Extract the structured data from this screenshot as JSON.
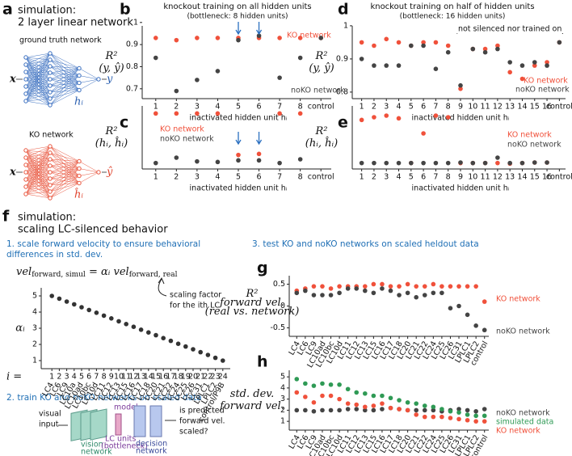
{
  "panels": {
    "a": "a",
    "b": "b",
    "c": "c",
    "d": "d",
    "e": "e",
    "f": "f",
    "g": "g",
    "h": "h"
  },
  "diagram": {
    "a_title": [
      "simulation:",
      "2 layer linear network"
    ],
    "ground_truth": "ground truth network",
    "ko_network": "KO network",
    "x": "x",
    "y": "y",
    "h": "hᵢ",
    "yhat": "ŷ",
    "hhat": "ĥᵢ",
    "f_title": [
      "simulation:",
      "scaling LC-silenced behavior"
    ],
    "step1": [
      "1. scale forward velocity to ensure behavioral",
      "differences in std. dev."
    ],
    "formula": [
      "vel",
      "forward, simul",
      " = αᵢ vel",
      "forward, real"
    ],
    "scaling_note": [
      "scaling factor",
      "for the ith LC"
    ],
    "step2": "2. train KO and noKO networks on scaled data",
    "step3": "3. test KO and noKO networks on scaled heldout data",
    "visual_input": [
      "visual",
      "input"
    ],
    "vision_network": [
      "vision",
      "network"
    ],
    "model_units": [
      "model",
      "LC units",
      "(bottleneck)"
    ],
    "decision_network": [
      "decision",
      "network"
    ],
    "question": [
      "is predicted",
      "forward vel.",
      "scaled?"
    ]
  },
  "chart_data": [
    {
      "type": "scatter",
      "title": "knockout training on all hidden units",
      "subtitle": "(bottleneck: 8 hidden units)",
      "ylabel": [
        "R²",
        "(y, ŷ)"
      ],
      "xlabel": "inactivated hidden unit hᵢ",
      "categories": [
        "1",
        "2",
        "3",
        "4",
        "5",
        "6",
        "7",
        "8",
        "control"
      ],
      "series": [
        {
          "name": "KO network",
          "color": "#f0513b",
          "values": [
            0.93,
            0.92,
            0.93,
            0.93,
            0.93,
            0.93,
            0.93,
            0.93,
            0.93
          ]
        },
        {
          "name": "noKO network",
          "color": "#444444",
          "values": [
            0.84,
            0.69,
            0.74,
            0.78,
            0.92,
            0.94,
            0.75,
            0.84,
            0.93
          ]
        }
      ],
      "ylim": [
        0.67,
        0.97
      ],
      "yticks": [
        0.7,
        0.8,
        0.9,
        1
      ]
    },
    {
      "type": "scatter",
      "ylabel": [
        "R²",
        "(hᵢ, ĥᵢ)"
      ],
      "xlabel": "inactivated hidden unit hᵢ",
      "categories": [
        "1",
        "2",
        "3",
        "4",
        "5",
        "6",
        "7",
        "8",
        "control"
      ],
      "series": [
        {
          "name": "KO network",
          "color": "#f0513b",
          "values": [
            0.97,
            0.97,
            0.97,
            0.97,
            0.2,
            0.22,
            0.97,
            0.97,
            null
          ]
        },
        {
          "name": "noKO network",
          "color": "#444444",
          "values": [
            0.05,
            0.15,
            0.08,
            0.07,
            0.1,
            0.1,
            0.05,
            0.12,
            null
          ]
        }
      ],
      "ylim": [
        0,
        1.05
      ]
    },
    {
      "type": "scatter",
      "title": "knockout training on half of hidden units",
      "subtitle": "(bottleneck: 16 hidden units)",
      "annotation": "not silenced nor trained on",
      "ylabel": [
        "R²",
        "(y, ŷ)"
      ],
      "xlabel": "inactivated hidden unit hᵢ",
      "categories": [
        "1",
        "2",
        "3",
        "4",
        "5",
        "6",
        "7",
        "8",
        "9",
        "10",
        "11",
        "12",
        "13",
        "14",
        "15",
        "16",
        "control"
      ],
      "series": [
        {
          "name": "KO network",
          "color": "#f0513b",
          "values": [
            0.95,
            0.94,
            0.96,
            0.95,
            0.94,
            0.95,
            0.95,
            0.94,
            0.81,
            0.93,
            0.93,
            0.94,
            0.86,
            0.84,
            0.88,
            0.89,
            0.95
          ]
        },
        {
          "name": "noKO network",
          "color": "#444444",
          "values": [
            0.9,
            0.88,
            0.88,
            0.88,
            0.94,
            0.94,
            0.87,
            0.92,
            0.82,
            0.93,
            0.92,
            0.93,
            0.89,
            0.88,
            0.89,
            0.88,
            0.95
          ]
        }
      ],
      "ylim": [
        0.79,
        0.99
      ],
      "yticks": [
        0.8,
        0.9,
        1
      ]
    },
    {
      "type": "scatter",
      "ylabel": [
        "R²",
        "(hᵢ, ĥᵢ)"
      ],
      "xlabel": "inactivated hidden unit hᵢ",
      "categories": [
        "1",
        "2",
        "3",
        "4",
        "5",
        "6",
        "7",
        "8",
        "9",
        "10",
        "11",
        "12",
        "13",
        "14",
        "15",
        "16",
        "control"
      ],
      "series": [
        {
          "name": "KO network",
          "color": "#f0513b",
          "values": [
            0.85,
            0.9,
            0.93,
            0.88,
            0.05,
            0.6,
            0.93,
            0.9,
            0.05,
            0.05,
            0.05,
            0.05,
            0.04,
            0.05,
            0.06,
            0.06,
            null
          ]
        },
        {
          "name": "noKO network",
          "color": "#444444",
          "values": [
            0.05,
            0.05,
            0.05,
            0.05,
            0.05,
            0.05,
            0.05,
            0.05,
            0.06,
            0.05,
            0.05,
            0.15,
            0.05,
            0.05,
            0.06,
            0.06,
            null
          ]
        }
      ],
      "ylim": [
        0,
        1.05
      ]
    },
    {
      "type": "scatter",
      "ylabel": [
        "αᵢ"
      ],
      "xlabel_prefix": "i =",
      "x": [
        1,
        2,
        3,
        4,
        5,
        6,
        7,
        8,
        9,
        10,
        11,
        12,
        13,
        14,
        15,
        16,
        17,
        18,
        19,
        20,
        21,
        22,
        23,
        24
      ],
      "categories": [
        "LC4",
        "LC6",
        "LC9",
        "LC10a",
        "LC10ad",
        "LC10bc",
        "LC10d",
        "LC11",
        "LC12",
        "LC13",
        "LC15",
        "LC16",
        "LC17",
        "LC18",
        "LC20",
        "LC21",
        "LC22",
        "LC24",
        "LC25",
        "LC26",
        "LC31",
        "LPLC1",
        "LPLC2",
        "control/P9B"
      ],
      "series": [
        {
          "name": "αᵢ",
          "color": "#333333",
          "values": [
            5,
            4.83,
            4.65,
            4.48,
            4.3,
            4.13,
            3.96,
            3.78,
            3.61,
            3.43,
            3.26,
            3.09,
            2.91,
            2.74,
            2.57,
            2.39,
            2.22,
            2.04,
            1.87,
            1.7,
            1.52,
            1.35,
            1.17,
            1
          ]
        }
      ],
      "xlim": [
        0,
        25
      ],
      "xticks": [
        1,
        2,
        3,
        4,
        5,
        6,
        7,
        8,
        9,
        10,
        11,
        12,
        13,
        14,
        15,
        16,
        17,
        18,
        19,
        20,
        21,
        22,
        23,
        24
      ],
      "ylim": [
        0.7,
        5.3
      ],
      "yticks": [
        1,
        2,
        3,
        4,
        5
      ]
    },
    {
      "type": "scatter",
      "ylabel": [
        "R²",
        "forward vel.",
        "(real vs. network)"
      ],
      "categories": [
        "LC4",
        "LC6",
        "LC9",
        "LC10ad",
        "LC10bc",
        "LC10d",
        "LC11",
        "LC12",
        "LC13",
        "LC15",
        "LC16",
        "LC17",
        "LC18",
        "LC20",
        "LC21",
        "LC22",
        "LC24",
        "LC25",
        "LC26",
        "LC31",
        "LPLC1",
        "LPLC2",
        "control"
      ],
      "series": [
        {
          "name": "KO network",
          "color": "#f0513b",
          "values": [
            0.35,
            0.4,
            0.45,
            0.45,
            0.4,
            0.45,
            0.45,
            0.45,
            0.45,
            0.5,
            0.5,
            0.45,
            0.45,
            0.5,
            0.45,
            0.45,
            0.5,
            0.45,
            0.45,
            0.45,
            0.45,
            0.45,
            0.1
          ]
        },
        {
          "name": "noKO network",
          "color": "#444444",
          "values": [
            0.3,
            0.35,
            0.25,
            0.25,
            0.25,
            0.3,
            0.4,
            0.4,
            0.35,
            0.3,
            0.4,
            0.35,
            0.25,
            0.3,
            0.2,
            0.25,
            0.3,
            0.3,
            -0.05,
            0,
            -0.2,
            -0.45,
            -0.55
          ]
        }
      ],
      "ylim": [
        -0.62,
        0.62
      ],
      "yticks": [
        0.5,
        0,
        -0.5
      ]
    },
    {
      "type": "scatter",
      "ylabel": [
        "std. dev.",
        "forward vel."
      ],
      "categories": [
        "LC4",
        "LC6",
        "LC9",
        "LC10ad",
        "LC10bc",
        "LC10d",
        "LC11",
        "LC12",
        "LC13",
        "LC15",
        "LC16",
        "LC17",
        "LC18",
        "LC20",
        "LC21",
        "LC22",
        "LC24",
        "LC25",
        "LC26",
        "LC31",
        "LPLC1",
        "LPLC2",
        "control"
      ],
      "series": [
        {
          "name": "noKO network",
          "color": "#444444",
          "values": [
            2,
            2,
            1.9,
            2,
            2,
            2,
            2.1,
            2.1,
            2,
            2,
            2.1,
            2.2,
            2.1,
            2,
            2,
            2,
            2,
            1.9,
            2,
            2.1,
            2,
            1.9,
            2.1
          ]
        },
        {
          "name": "simulated data",
          "color": "#2f9a55",
          "values": [
            4.8,
            4.4,
            4.2,
            4.4,
            4.3,
            4.3,
            3.9,
            3.6,
            3.5,
            3.3,
            3.3,
            3.1,
            2.9,
            2.7,
            2.6,
            2.4,
            2.3,
            2.1,
            1.9,
            1.8,
            1.6,
            1.5,
            1.5
          ]
        },
        {
          "name": "KO network",
          "color": "#f0513b",
          "values": [
            3.6,
            3.2,
            2.7,
            3.3,
            3.3,
            3,
            2.6,
            2.5,
            2.3,
            2.4,
            2.6,
            2.2,
            2.1,
            2,
            1.6,
            1.4,
            1.4,
            1.4,
            1.3,
            1.2,
            1.1,
            1,
            1
          ]
        }
      ],
      "ylim": [
        0.5,
        5.3
      ],
      "yticks": [
        1,
        2,
        3,
        4,
        5
      ]
    }
  ]
}
